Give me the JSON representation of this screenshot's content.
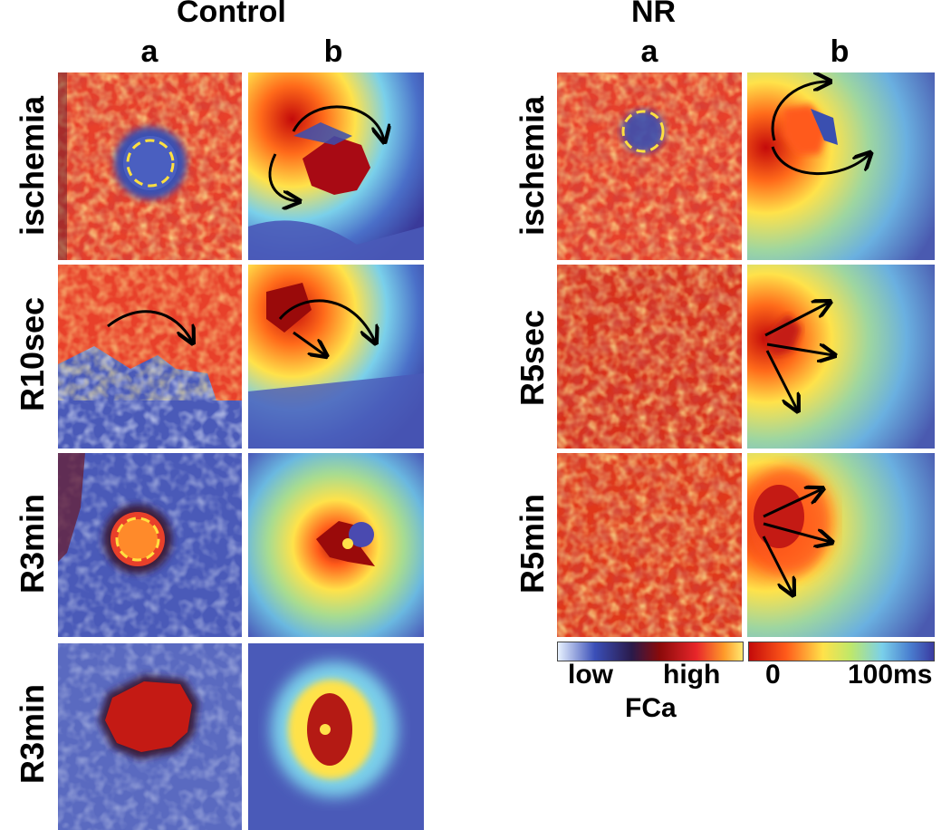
{
  "groups": {
    "control": {
      "title": "Control",
      "col_a": "a",
      "col_b": "b",
      "rows": [
        "ischemia",
        "R10sec",
        "R3min",
        "R3min"
      ]
    },
    "nr": {
      "title": "NR",
      "col_a": "a",
      "col_b": "b",
      "rows": [
        "ischemia",
        "R5sec",
        "R5min"
      ]
    }
  },
  "colorbar_fca": {
    "low_label": "low",
    "high_label": "high",
    "title": "FCa",
    "colors": [
      "#e8f2ff",
      "#3a4fb8",
      "#2a1a4a",
      "#8a0a0a",
      "#e8262a",
      "#ff9a2a",
      "#ffe870"
    ]
  },
  "colorbar_time": {
    "start_label": "0",
    "end_label": "100ms",
    "colors": [
      "#c40a0a",
      "#ff5a1a",
      "#ffe24a",
      "#bfe86a",
      "#7ad0ea",
      "#4a7fd0",
      "#3a3aa0"
    ]
  }
}
